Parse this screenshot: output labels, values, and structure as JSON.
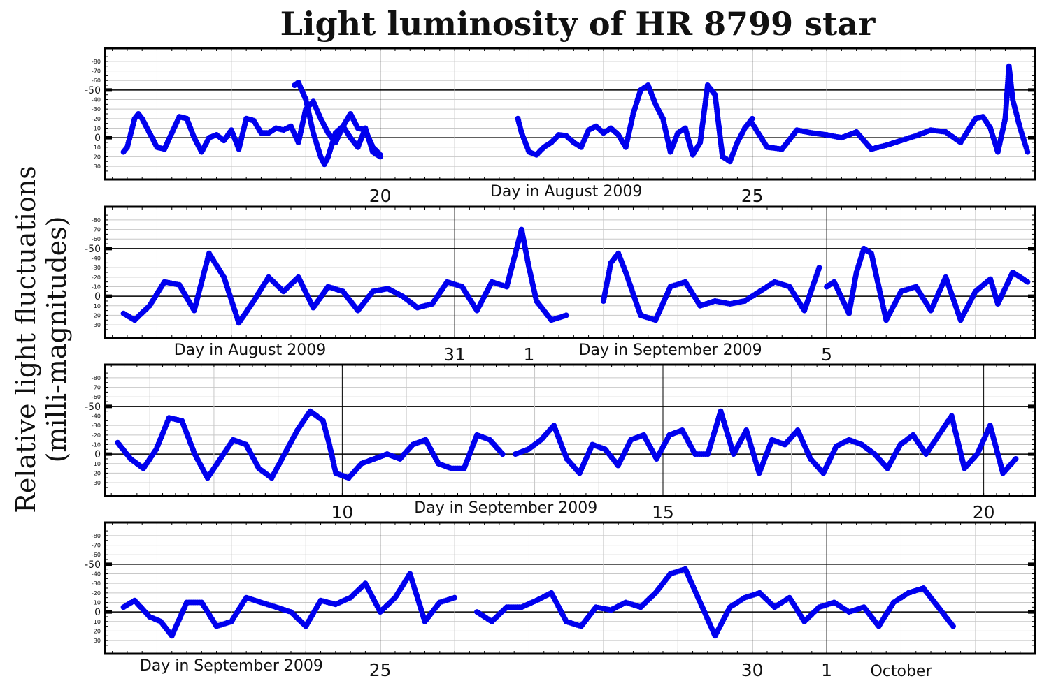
{
  "chart_data": {
    "type": "scatter",
    "title": "Light luminosity of HR 8799 star",
    "ylabel_line1": "Relative light fluctuations",
    "ylabel_line2": "(milli-magnitudes)",
    "y_axis": {
      "inverted": true,
      "ylim": [
        38,
        -88
      ],
      "ticks": [
        -80,
        -70,
        -60,
        -50,
        -40,
        -30,
        -20,
        -10,
        0,
        10,
        20,
        30
      ],
      "labels": [
        "-80",
        "-70",
        "-60",
        "-50",
        "-40",
        "-30",
        "-20",
        "-10",
        "0",
        "10",
        "20",
        "30"
      ],
      "emphasized": [
        -50,
        0
      ]
    },
    "marker_color": "#0000ee",
    "grid": true,
    "panels": [
      {
        "xlim": [
          16.3,
          28.8
        ],
        "x_units": "day of August 2009",
        "minor_grid_x": [
          17,
          18,
          19,
          21,
          22,
          23,
          24,
          26,
          27,
          28
        ],
        "major_grid_x": [
          20,
          25
        ],
        "day_labels": [
          {
            "x": 20,
            "text": "20"
          },
          {
            "x": 25,
            "text": "25"
          }
        ],
        "caption": {
          "x": 22.5,
          "text": "Day in August 2009"
        },
        "series": [
          {
            "x": [
              16.55,
              16.6,
              16.7,
              16.75,
              16.8,
              16.9,
              17.0,
              17.1,
              17.2,
              17.3,
              17.4,
              17.5,
              17.6,
              17.7,
              17.8,
              17.9,
              18.0,
              18.1,
              18.2,
              18.3,
              18.4,
              18.5,
              18.6,
              18.7,
              18.8,
              18.9,
              19.0,
              19.1,
              19.2,
              19.3,
              19.4,
              19.5,
              19.6,
              19.7,
              19.8,
              19.9,
              20.0
            ],
            "y": [
              15,
              10,
              -20,
              -25,
              -20,
              -5,
              10,
              12,
              -5,
              -22,
              -20,
              0,
              15,
              0,
              -3,
              3,
              -8,
              12,
              -20,
              -18,
              -5,
              -5,
              -10,
              -8,
              -12,
              5,
              -30,
              -38,
              -20,
              -5,
              5,
              -12,
              -25,
              -10,
              -8,
              10,
              18
            ]
          },
          {
            "x": [
              18.85,
              18.9,
              19.0,
              19.1,
              19.2,
              19.25,
              19.3,
              19.4,
              19.5,
              19.6,
              19.7,
              19.8,
              19.9,
              20.0
            ],
            "y": [
              -55,
              -58,
              -40,
              -5,
              20,
              28,
              20,
              -5,
              -12,
              0,
              10,
              -10,
              15,
              20
            ]
          },
          {
            "x": [
              21.85,
              21.9,
              22.0,
              22.1,
              22.2,
              22.3,
              22.4,
              22.5,
              22.6,
              22.7,
              22.8,
              22.9,
              23.0,
              23.1,
              23.2,
              23.3,
              23.4,
              23.5,
              23.6,
              23.7,
              23.8,
              23.9,
              24.0,
              24.1,
              24.2,
              24.3,
              24.4,
              24.5,
              24.6,
              24.7,
              24.8,
              24.9,
              25.0
            ],
            "y": [
              -20,
              -5,
              15,
              18,
              10,
              5,
              -3,
              -2,
              5,
              10,
              -8,
              -12,
              -5,
              -10,
              -3,
              10,
              -25,
              -50,
              -55,
              -35,
              -20,
              15,
              -5,
              -10,
              18,
              5,
              -55,
              -45,
              20,
              25,
              5,
              -10,
              -20
            ]
          },
          {
            "x": [
              25.0,
              25.2,
              25.4,
              25.6,
              25.8,
              26.0,
              26.2,
              26.4,
              26.6,
              26.8,
              27.0,
              27.2,
              27.4,
              27.6,
              27.8,
              28.0,
              28.1,
              28.2,
              28.3,
              28.4,
              28.45,
              28.5,
              28.6,
              28.7
            ],
            "y": [
              -15,
              10,
              12,
              -8,
              -5,
              -3,
              0,
              -6,
              12,
              8,
              3,
              -2,
              -8,
              -6,
              5,
              -20,
              -22,
              -10,
              15,
              -20,
              -75,
              -40,
              -10,
              15
            ]
          }
        ]
      },
      {
        "xlim": [
          26.3,
          38.8
        ],
        "x_units": "day of August 2009 (32 = September 1)",
        "minor_grid_x": [
          27,
          28,
          29,
          30,
          32,
          33,
          34,
          35,
          37,
          38
        ],
        "major_grid_x": [
          31,
          36
        ],
        "day_labels": [
          {
            "x": 31,
            "text": "31"
          },
          {
            "x": 32,
            "text": "1"
          },
          {
            "x": 36,
            "text": "5"
          }
        ],
        "captions": [
          {
            "x": 28.25,
            "text": "Day in August 2009"
          },
          {
            "x": 33.9,
            "text": "Day in September 2009"
          }
        ],
        "series": [
          {
            "x": [
              26.55,
              26.7,
              26.9,
              27.1,
              27.3,
              27.5,
              27.7,
              27.9,
              28.1,
              28.3,
              28.5,
              28.7,
              28.9,
              29.1,
              29.3,
              29.5,
              29.7,
              29.9,
              30.1,
              30.3,
              30.5,
              30.7,
              30.9,
              31.1,
              31.3,
              31.5,
              31.7,
              31.9,
              32.0,
              32.1,
              32.3,
              32.5
            ],
            "y": [
              18,
              25,
              10,
              -15,
              -12,
              15,
              -45,
              -20,
              28,
              5,
              -20,
              -5,
              -20,
              12,
              -10,
              -5,
              15,
              -5,
              -8,
              0,
              12,
              8,
              -15,
              -10,
              15,
              -15,
              -10,
              -70,
              -30,
              5,
              25,
              20
            ]
          },
          {
            "x": [
              33.0,
              33.1,
              33.2,
              33.3,
              33.5,
              33.7,
              33.9,
              34.1,
              34.3,
              34.5,
              34.7,
              34.9,
              35.1,
              35.3,
              35.5,
              35.7,
              35.9
            ],
            "y": [
              5,
              -35,
              -45,
              -25,
              20,
              25,
              -10,
              -15,
              10,
              5,
              8,
              5,
              -5,
              -15,
              -10,
              15,
              -30
            ]
          },
          {
            "x": [
              36.0,
              36.1,
              36.3,
              36.4,
              36.5,
              36.6,
              36.8,
              37.0,
              37.2,
              37.4,
              37.6,
              37.8,
              38.0,
              38.2,
              38.3,
              38.5,
              38.7
            ],
            "y": [
              -10,
              -15,
              18,
              -25,
              -50,
              -45,
              25,
              -5,
              -10,
              15,
              -20,
              25,
              -5,
              -18,
              8,
              -25,
              -15
            ]
          }
        ]
      },
      {
        "xlim": [
          6.3,
          20.8
        ],
        "x_units": "day of September 2009",
        "minor_grid_x": [
          7,
          8,
          9,
          11,
          12,
          13,
          14,
          16,
          17,
          18,
          19
        ],
        "major_grid_x": [
          10,
          15,
          20
        ],
        "day_labels": [
          {
            "x": 10,
            "text": "10"
          },
          {
            "x": 15,
            "text": "15"
          },
          {
            "x": 20,
            "text": "20"
          }
        ],
        "caption": {
          "x": 12.55,
          "text": "Day in September 2009"
        },
        "series": [
          {
            "x": [
              6.5,
              6.7,
              6.9,
              7.1,
              7.3,
              7.5,
              7.7,
              7.9,
              8.1,
              8.3,
              8.5,
              8.7,
              8.9,
              9.1,
              9.3,
              9.5,
              9.7,
              9.8,
              9.9,
              10.1,
              10.3,
              10.5,
              10.7,
              10.9,
              11.1,
              11.3,
              11.5,
              11.7,
              11.9,
              12.1,
              12.3,
              12.5
            ],
            "y": [
              -12,
              5,
              15,
              -5,
              -38,
              -35,
              0,
              25,
              5,
              -15,
              -10,
              15,
              25,
              0,
              -25,
              -45,
              -35,
              -10,
              20,
              25,
              10,
              5,
              0,
              5,
              -10,
              -15,
              10,
              15,
              15,
              -20,
              -15,
              0
            ]
          },
          {
            "x": [
              12.7,
              12.9,
              13.1,
              13.3,
              13.5,
              13.7,
              13.9,
              14.1,
              14.3,
              14.5,
              14.7,
              14.9,
              15.1,
              15.3,
              15.5,
              15.7,
              15.9,
              16.1,
              16.3,
              16.5,
              16.7,
              16.9,
              17.1,
              17.3,
              17.5,
              17.7,
              17.9,
              18.1,
              18.3,
              18.5,
              18.7,
              18.9,
              19.1,
              19.3,
              19.5,
              19.7,
              19.9,
              20.1,
              20.3,
              20.5
            ],
            "y": [
              0,
              -5,
              -15,
              -30,
              5,
              20,
              -10,
              -5,
              12,
              -15,
              -20,
              5,
              -20,
              -25,
              0,
              0,
              -45,
              0,
              -25,
              20,
              -15,
              -10,
              -25,
              5,
              20,
              -8,
              -15,
              -10,
              0,
              15,
              -10,
              -20,
              0,
              -20,
              -40,
              15,
              0,
              -30,
              20,
              5
            ]
          }
        ]
      },
      {
        "xlim": [
          21.3,
          33.8
        ],
        "x_units": "day of September 2009 (31 = October 1)",
        "minor_grid_x": [
          22,
          23,
          24,
          26,
          27,
          28,
          29,
          32,
          33
        ],
        "major_grid_x": [
          25,
          30,
          31
        ],
        "day_labels": [
          {
            "x": 25,
            "text": "25"
          },
          {
            "x": 30,
            "text": "30"
          },
          {
            "x": 31,
            "text": "1"
          },
          {
            "x": 32,
            "text": "October"
          }
        ],
        "caption": {
          "x": 23.0,
          "text": "Day in September 2009"
        },
        "series": [
          {
            "x": [
              21.55,
              21.7,
              21.9,
              22.05,
              22.2,
              22.4,
              22.6,
              22.8,
              23.0,
              23.2,
              23.4,
              23.6,
              23.8,
              24.0,
              24.2,
              24.4,
              24.6,
              24.8,
              25.0,
              25.2,
              25.4,
              25.6,
              25.8,
              26.0
            ],
            "y": [
              -5,
              -12,
              5,
              10,
              25,
              -10,
              -10,
              15,
              10,
              -15,
              -10,
              -5,
              0,
              15,
              -12,
              -8,
              -15,
              -30,
              0,
              -15,
              -40,
              10,
              -10,
              -15
            ]
          },
          {
            "x": [
              26.3,
              26.5,
              26.7,
              26.9,
              27.1,
              27.3,
              27.5,
              27.7,
              27.9,
              28.1,
              28.3,
              28.5,
              28.7,
              28.9,
              29.1,
              29.3,
              29.5,
              29.7,
              29.9,
              30.1,
              30.3,
              30.5,
              30.7,
              30.9,
              31.1,
              31.3,
              31.5,
              31.7,
              31.9,
              32.1,
              32.3,
              32.5,
              32.7
            ],
            "y": [
              0,
              10,
              -5,
              -5,
              -12,
              -20,
              10,
              15,
              -5,
              -2,
              -10,
              -5,
              -20,
              -40,
              -45,
              -10,
              25,
              -5,
              -15,
              -20,
              -5,
              -15,
              10,
              -5,
              -10,
              0,
              -5,
              15,
              -10,
              -20,
              -25,
              -5,
              15
            ]
          }
        ]
      }
    ]
  }
}
